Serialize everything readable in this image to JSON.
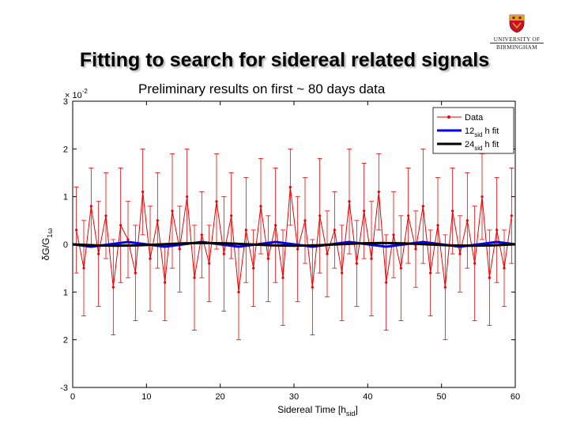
{
  "slide": {
    "title": "Fitting to search for sidereal related signals",
    "subtitle": "Preliminary results on first ~ 80 days data"
  },
  "logo": {
    "line1": "UNIVERSITY OF",
    "line2": "BIRMINGHAM",
    "crest_icon": "university-crest-icon"
  },
  "chart_data": {
    "type": "line",
    "xlabel": "Sidereal Time [h",
    "xlabel_sub": "sid",
    "xlabel_end": "]",
    "ylabel": "δG/G",
    "ylabel_sub": "1ω",
    "y_exponent": "× 10",
    "y_exponent_power": "-2",
    "xlim": [
      0,
      60
    ],
    "ylim": [
      -3,
      3
    ],
    "x_ticks": [
      "0",
      "10",
      "20",
      "30",
      "40",
      "50",
      "60"
    ],
    "y_ticks": [
      "3",
      "2",
      "1",
      "0",
      "1",
      "2",
      "-3"
    ],
    "grid": false,
    "legend_position": "top-right",
    "legend": [
      {
        "label": "Data",
        "color": "#ee0000"
      },
      {
        "label": "12",
        "sub": "sid",
        "suffix": " h fit",
        "color": "#0000ee"
      },
      {
        "label": "24",
        "sub": "sid",
        "suffix": " h fit",
        "color": "#000000"
      }
    ],
    "series": [
      {
        "name": "Data",
        "color": "#ee0000",
        "x": [
          0.5,
          1.5,
          2.5,
          3.5,
          4.5,
          5.5,
          6.5,
          7.5,
          8.5,
          9.5,
          10.5,
          11.5,
          12.5,
          13.5,
          14.5,
          15.5,
          16.5,
          17.5,
          18.5,
          19.5,
          20.5,
          21.5,
          22.5,
          23.5,
          24.5,
          25.5,
          26.5,
          27.5,
          28.5,
          29.5,
          30.5,
          31.5,
          32.5,
          33.5,
          34.5,
          35.5,
          36.5,
          37.5,
          38.5,
          39.5,
          40.5,
          41.5,
          42.5,
          43.5,
          44.5,
          45.5,
          46.5,
          47.5,
          48.5,
          49.5,
          50.5,
          51.5,
          52.5,
          53.5,
          54.5,
          55.5,
          56.5,
          57.5,
          58.5,
          59.5
        ],
        "y": [
          0.3,
          -0.5,
          0.8,
          -0.2,
          0.6,
          -0.9,
          0.4,
          0.1,
          -0.6,
          1.1,
          -0.3,
          0.5,
          -0.8,
          0.7,
          -0.1,
          1.0,
          -0.7,
          0.2,
          -0.4,
          0.9,
          -0.2,
          0.6,
          -1.0,
          0.3,
          -0.5,
          0.8,
          -0.3,
          0.4,
          -0.7,
          1.2,
          -0.1,
          0.5,
          -0.9,
          0.6,
          -0.2,
          0.3,
          -0.6,
          0.9,
          -0.4,
          0.7,
          -0.3,
          1.1,
          -0.8,
          0.2,
          -0.5,
          0.6,
          -0.1,
          0.8,
          -0.6,
          0.4,
          -0.9,
          0.7,
          -0.2,
          0.5,
          -0.4,
          1.0,
          -0.7,
          0.3,
          -0.5,
          0.6
        ],
        "error": [
          0.9,
          1.0,
          0.8,
          1.1,
          0.9,
          1.0,
          1.2,
          0.8,
          1.0,
          0.9,
          1.1,
          1.0,
          0.8,
          1.2,
          0.9,
          1.0,
          1.1,
          0.9,
          0.8,
          1.0,
          1.2,
          0.9,
          1.0,
          1.1,
          0.8,
          1.0,
          0.9,
          1.2,
          1.0,
          0.8,
          1.1,
          0.9,
          1.0,
          1.2,
          0.9,
          0.8,
          1.0,
          1.1,
          0.9,
          1.0,
          1.2,
          0.8,
          1.0,
          0.9,
          1.1,
          1.0,
          0.8,
          1.2,
          0.9,
          1.0,
          1.1,
          0.9,
          0.8,
          1.0,
          1.2,
          0.9,
          1.0,
          1.1,
          0.8,
          1.0
        ]
      },
      {
        "name": "12sid h fit",
        "color": "#0000ee",
        "x": [
          0,
          2.5,
          5,
          7.5,
          10,
          12.5,
          15,
          17.5,
          20,
          22.5,
          25,
          27.5,
          30,
          32.5,
          35,
          37.5,
          40,
          42.5,
          45,
          47.5,
          50,
          52.5,
          55,
          57.5,
          60
        ],
        "y": [
          0.0,
          -0.05,
          0.0,
          0.05,
          0.0,
          -0.05,
          0.0,
          0.05,
          0.0,
          -0.05,
          0.0,
          0.05,
          0.0,
          -0.05,
          0.0,
          0.05,
          0.0,
          -0.05,
          0.0,
          0.05,
          0.0,
          -0.05,
          0.0,
          0.05,
          0.0
        ]
      },
      {
        "name": "24sid h fit",
        "color": "#000000",
        "x": [
          0,
          3,
          6,
          9,
          12,
          15,
          18,
          21,
          24,
          27,
          30,
          33,
          36,
          39,
          42,
          45,
          48,
          51,
          54,
          57,
          60
        ],
        "y": [
          0.0,
          -0.02,
          -0.03,
          -0.02,
          0.0,
          0.02,
          0.03,
          0.02,
          0.0,
          -0.02,
          -0.03,
          -0.02,
          0.0,
          0.02,
          0.03,
          0.02,
          0.0,
          -0.02,
          -0.03,
          -0.02,
          0.0
        ]
      }
    ]
  }
}
